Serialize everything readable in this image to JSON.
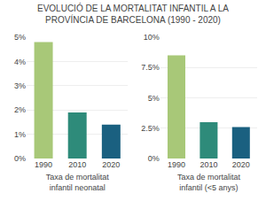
{
  "title": "EVOLUCIÓ DE LA MORTALITAT INFANTIL A LA\nPROVÍNCIA DE BARCELONA (1990 - 2020)",
  "chart_data": [
    {
      "type": "bar",
      "categories": [
        "1990",
        "2010",
        "2020"
      ],
      "values": [
        4.8,
        1.9,
        1.4
      ],
      "colors": [
        "#a8c878",
        "#2e8b7a",
        "#1a6080"
      ],
      "ylim": [
        0,
        5
      ],
      "yticks": [
        {
          "value": 0,
          "label": "0%"
        },
        {
          "value": 1,
          "label": "1%"
        },
        {
          "value": 2,
          "label": "2%"
        },
        {
          "value": 3,
          "label": "3%"
        },
        {
          "value": 4,
          "label": "4%"
        },
        {
          "value": 5,
          "label": "5%"
        }
      ],
      "xlabel": "Taxa de mortalitat\ninfantil neonatal",
      "grid": true
    },
    {
      "type": "bar",
      "categories": [
        "1990",
        "2010",
        "2020"
      ],
      "values": [
        8.5,
        3.0,
        2.6
      ],
      "colors": [
        "#a8c878",
        "#2e8b7a",
        "#1a6080"
      ],
      "ylim": [
        0,
        10
      ],
      "yticks": [
        {
          "value": 0,
          "label": "0%"
        },
        {
          "value": 2.5,
          "label": "2.5%"
        },
        {
          "value": 5,
          "label": "5%"
        },
        {
          "value": 7.5,
          "label": "7.5%"
        },
        {
          "value": 10,
          "label": "10%"
        }
      ],
      "xlabel": "Taxa de mortalitat\ninfantil (<5 anys)",
      "grid": true
    }
  ]
}
